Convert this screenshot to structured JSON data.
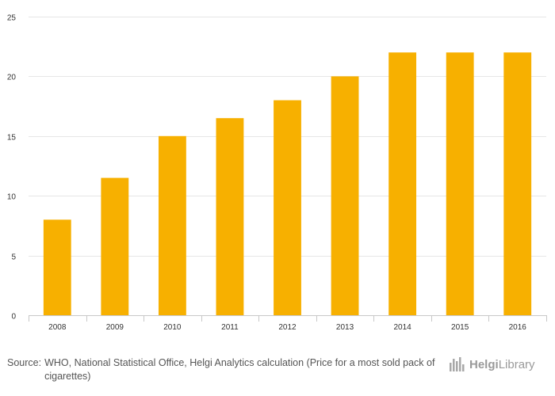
{
  "chart_data": {
    "type": "bar",
    "categories": [
      "2008",
      "2009",
      "2010",
      "2011",
      "2012",
      "2013",
      "2014",
      "2015",
      "2016"
    ],
    "values": [
      8,
      11.5,
      15,
      16.5,
      18,
      20,
      22,
      22,
      22
    ],
    "ylim": [
      0,
      25
    ],
    "yticks": [
      0,
      5,
      10,
      15,
      20,
      25
    ],
    "grid": true,
    "bar_color": "#f7b000"
  },
  "footer": {
    "source_prefix": "Source:",
    "source_text": "WHO, National Statistical Office, Helgi Analytics calculation (Price for a most sold pack of cigarettes)"
  },
  "brand": {
    "name_part1": "Helgi",
    "name_part2": "Library",
    "logo_icon": "helgi-logo-icon"
  }
}
